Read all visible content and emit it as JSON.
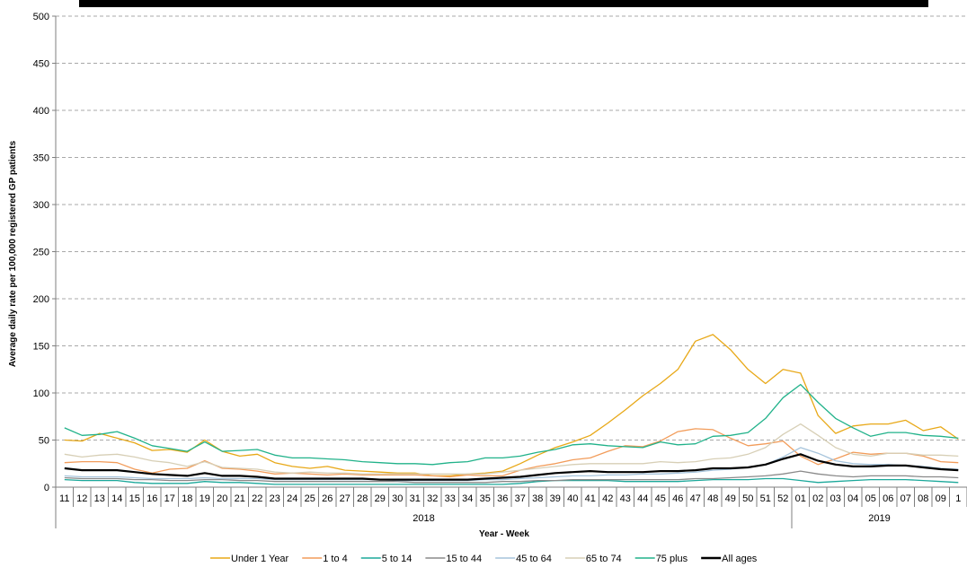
{
  "chart_data": {
    "type": "line",
    "title": "",
    "xlabel": "Year - Week",
    "ylabel": "Average daily rate per 100,000 registered GP patients",
    "ylim": [
      0,
      500
    ],
    "yticks": [
      0,
      50,
      100,
      150,
      200,
      250,
      300,
      350,
      400,
      450,
      500
    ],
    "grid": "horizontal dashed",
    "legend_position": "bottom",
    "weeks": [
      "11",
      "12",
      "13",
      "14",
      "15",
      "16",
      "17",
      "18",
      "19",
      "20",
      "21",
      "22",
      "23",
      "24",
      "25",
      "26",
      "27",
      "28",
      "29",
      "30",
      "31",
      "32",
      "33",
      "34",
      "35",
      "36",
      "37",
      "38",
      "39",
      "40",
      "41",
      "42",
      "43",
      "44",
      "45",
      "46",
      "47",
      "48",
      "49",
      "50",
      "51",
      "52",
      "01",
      "02",
      "03",
      "04",
      "05",
      "06",
      "07",
      "08",
      "09",
      "1"
    ],
    "years": [
      {
        "label": "2018",
        "start": 0,
        "end": 41
      },
      {
        "label": "2019",
        "start": 42,
        "end": 51
      }
    ],
    "series": [
      {
        "name": "Under 1 Year",
        "color": "#E8A817",
        "width": 1.3,
        "values": [
          50,
          49,
          57,
          52,
          47,
          39,
          40,
          37,
          50,
          38,
          33,
          35,
          26,
          22,
          20,
          22,
          18,
          17,
          16,
          15,
          15,
          12,
          12,
          14,
          15,
          17,
          25,
          34,
          42,
          48,
          55,
          68,
          82,
          97,
          110,
          125,
          155,
          162,
          146,
          125,
          110,
          125,
          121,
          76,
          57,
          65,
          67,
          67,
          71,
          60,
          64,
          51
        ]
      },
      {
        "name": "1 to 4",
        "color": "#F29C5A",
        "width": 1.3,
        "values": [
          26,
          27,
          27,
          26,
          19,
          15,
          19,
          20,
          28,
          20,
          19,
          17,
          14,
          15,
          14,
          13,
          14,
          13,
          13,
          13,
          13,
          12,
          11,
          13,
          12,
          12,
          18,
          22,
          25,
          29,
          31,
          38,
          44,
          43,
          49,
          59,
          62,
          61,
          52,
          44,
          46,
          49,
          33,
          24,
          30,
          37,
          35,
          36,
          36,
          33,
          27,
          26
        ]
      },
      {
        "name": "5 to 14",
        "color": "#1BA89A",
        "width": 1.3,
        "values": [
          8,
          7,
          7,
          7,
          5,
          4,
          4,
          4,
          6,
          5,
          5,
          4,
          3,
          3,
          3,
          3,
          3,
          3,
          3,
          3,
          3,
          3,
          3,
          3,
          3,
          3,
          4,
          6,
          7,
          7,
          7,
          7,
          6,
          6,
          6,
          6,
          7,
          8,
          8,
          8,
          9,
          9,
          7,
          5,
          6,
          7,
          8,
          8,
          8,
          7,
          6,
          5
        ]
      },
      {
        "name": "15 to 44",
        "color": "#8A8A8A",
        "width": 1.3,
        "values": [
          10,
          9,
          9,
          9,
          8,
          8,
          7,
          7,
          8,
          8,
          7,
          7,
          6,
          6,
          6,
          6,
          6,
          6,
          6,
          6,
          5,
          5,
          5,
          5,
          5,
          6,
          6,
          7,
          7,
          8,
          8,
          8,
          8,
          8,
          8,
          8,
          9,
          9,
          10,
          11,
          12,
          14,
          17,
          14,
          12,
          11,
          12,
          12,
          12,
          11,
          11,
          10
        ]
      },
      {
        "name": "45 to 64",
        "color": "#A6C4DC",
        "width": 1.3,
        "values": [
          12,
          11,
          11,
          11,
          10,
          9,
          9,
          9,
          10,
          9,
          9,
          9,
          8,
          8,
          8,
          8,
          8,
          8,
          8,
          7,
          7,
          7,
          7,
          7,
          8,
          8,
          9,
          10,
          11,
          12,
          12,
          13,
          13,
          14,
          14,
          15,
          16,
          18,
          19,
          21,
          24,
          32,
          42,
          36,
          28,
          25,
          24,
          24,
          23,
          22,
          20,
          19
        ]
      },
      {
        "name": "65 to 74",
        "color": "#D7CFB6",
        "width": 1.3,
        "values": [
          35,
          32,
          34,
          35,
          32,
          28,
          26,
          22,
          27,
          21,
          20,
          19,
          16,
          15,
          16,
          15,
          15,
          14,
          14,
          14,
          14,
          14,
          14,
          14,
          14,
          16,
          18,
          20,
          22,
          24,
          25,
          25,
          25,
          25,
          27,
          26,
          27,
          30,
          31,
          35,
          42,
          56,
          67,
          55,
          42,
          35,
          33,
          36,
          36,
          34,
          34,
          33
        ]
      },
      {
        "name": "75 plus",
        "color": "#21B28A",
        "width": 1.3,
        "values": [
          63,
          55,
          56,
          59,
          52,
          44,
          41,
          38,
          48,
          38,
          39,
          40,
          34,
          31,
          31,
          30,
          29,
          27,
          26,
          25,
          25,
          24,
          26,
          27,
          31,
          31,
          33,
          37,
          40,
          45,
          46,
          44,
          43,
          42,
          48,
          45,
          46,
          54,
          55,
          58,
          73,
          95,
          109,
          90,
          73,
          63,
          54,
          58,
          58,
          55,
          54,
          52
        ]
      },
      {
        "name": "All ages",
        "color": "#000000",
        "width": 2.2,
        "values": [
          20,
          18,
          18,
          18,
          16,
          14,
          13,
          12,
          15,
          12,
          12,
          11,
          9,
          9,
          9,
          9,
          9,
          9,
          8,
          8,
          8,
          8,
          8,
          8,
          9,
          10,
          11,
          13,
          15,
          16,
          17,
          16,
          16,
          16,
          17,
          17,
          18,
          20,
          20,
          21,
          24,
          30,
          35,
          28,
          24,
          22,
          22,
          23,
          23,
          21,
          19,
          18
        ]
      }
    ]
  }
}
